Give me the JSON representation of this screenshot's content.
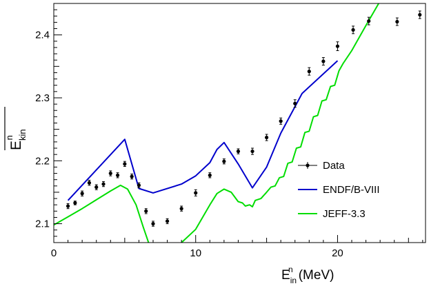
{
  "chart_data": {
    "type": "line",
    "xlabel": {
      "main": "E",
      "sup": "n",
      "sub": "in",
      "unit": "(MeV)"
    },
    "ylabel": {
      "main": "E",
      "sup": "n",
      "sub": "kin"
    },
    "xlim": [
      0,
      26.2
    ],
    "ylim": [
      2.07,
      2.45
    ],
    "xticks": [
      0,
      10,
      20
    ],
    "yticks": [
      2.1,
      2.2,
      2.3,
      2.4
    ],
    "legend_position": "center-right",
    "grid": false,
    "series": [
      {
        "name": "Data",
        "kind": "points-with-errors",
        "color": "#000000",
        "points": [
          {
            "x": 1.0,
            "y": 2.128,
            "err": 0.004
          },
          {
            "x": 1.5,
            "y": 2.133,
            "err": 0.003
          },
          {
            "x": 2.0,
            "y": 2.148,
            "err": 0.004
          },
          {
            "x": 2.5,
            "y": 2.165,
            "err": 0.004
          },
          {
            "x": 3.0,
            "y": 2.158,
            "err": 0.004
          },
          {
            "x": 3.5,
            "y": 2.163,
            "err": 0.004
          },
          {
            "x": 4.0,
            "y": 2.18,
            "err": 0.004
          },
          {
            "x": 4.5,
            "y": 2.177,
            "err": 0.004
          },
          {
            "x": 5.0,
            "y": 2.195,
            "err": 0.004
          },
          {
            "x": 5.5,
            "y": 2.175,
            "err": 0.004
          },
          {
            "x": 6.0,
            "y": 2.161,
            "err": 0.004
          },
          {
            "x": 6.5,
            "y": 2.12,
            "err": 0.004
          },
          {
            "x": 7.0,
            "y": 2.1,
            "err": 0.004
          },
          {
            "x": 8.0,
            "y": 2.104,
            "err": 0.004
          },
          {
            "x": 9.0,
            "y": 2.124,
            "err": 0.004
          },
          {
            "x": 10.0,
            "y": 2.149,
            "err": 0.005
          },
          {
            "x": 11.0,
            "y": 2.177,
            "err": 0.004
          },
          {
            "x": 12.0,
            "y": 2.199,
            "err": 0.004
          },
          {
            "x": 13.0,
            "y": 2.215,
            "err": 0.004
          },
          {
            "x": 14.0,
            "y": 2.215,
            "err": 0.005
          },
          {
            "x": 15.0,
            "y": 2.237,
            "err": 0.005
          },
          {
            "x": 16.0,
            "y": 2.263,
            "err": 0.005
          },
          {
            "x": 17.0,
            "y": 2.291,
            "err": 0.006
          },
          {
            "x": 18.0,
            "y": 2.342,
            "err": 0.006
          },
          {
            "x": 19.0,
            "y": 2.358,
            "err": 0.006
          },
          {
            "x": 20.0,
            "y": 2.382,
            "err": 0.007
          },
          {
            "x": 21.1,
            "y": 2.408,
            "err": 0.006
          },
          {
            "x": 22.2,
            "y": 2.422,
            "err": 0.006
          },
          {
            "x": 24.2,
            "y": 2.421,
            "err": 0.006
          },
          {
            "x": 25.8,
            "y": 2.432,
            "err": 0.006
          }
        ]
      },
      {
        "name": "ENDF/B-VIII",
        "kind": "line",
        "color": "#0000cc",
        "points": [
          {
            "x": 1.0,
            "y": 2.137
          },
          {
            "x": 5.0,
            "y": 2.234
          },
          {
            "x": 6.0,
            "y": 2.156
          },
          {
            "x": 7.0,
            "y": 2.149
          },
          {
            "x": 9.0,
            "y": 2.163
          },
          {
            "x": 10.0,
            "y": 2.176
          },
          {
            "x": 11.0,
            "y": 2.197
          },
          {
            "x": 11.5,
            "y": 2.218
          },
          {
            "x": 12.0,
            "y": 2.229
          },
          {
            "x": 13.0,
            "y": 2.195
          },
          {
            "x": 14.0,
            "y": 2.157
          },
          {
            "x": 15.0,
            "y": 2.19
          },
          {
            "x": 16.0,
            "y": 2.244
          },
          {
            "x": 17.5,
            "y": 2.307
          },
          {
            "x": 20.0,
            "y": 2.359
          }
        ]
      },
      {
        "name": "JEFF-3.3",
        "kind": "line",
        "color": "#00dd00",
        "points": [
          {
            "x": 0.0,
            "y": 2.098
          },
          {
            "x": 1.0,
            "y": 2.111
          },
          {
            "x": 2.0,
            "y": 2.124
          },
          {
            "x": 3.0,
            "y": 2.138
          },
          {
            "x": 4.0,
            "y": 2.152
          },
          {
            "x": 4.7,
            "y": 2.161
          },
          {
            "x": 5.2,
            "y": 2.155
          },
          {
            "x": 5.8,
            "y": 2.13
          },
          {
            "x": 6.3,
            "y": 2.095
          },
          {
            "x": 6.8,
            "y": 2.062
          },
          {
            "x": 7.2,
            "y": 2.05
          },
          {
            "x": 7.6,
            "y": 2.05
          },
          {
            "x": 8.0,
            "y": 2.054
          },
          {
            "x": 9.0,
            "y": 2.07
          },
          {
            "x": 10.0,
            "y": 2.091
          },
          {
            "x": 11.0,
            "y": 2.13
          },
          {
            "x": 11.5,
            "y": 2.148
          },
          {
            "x": 12.0,
            "y": 2.155
          },
          {
            "x": 12.5,
            "y": 2.15
          },
          {
            "x": 13.0,
            "y": 2.135
          },
          {
            "x": 13.3,
            "y": 2.133
          },
          {
            "x": 13.5,
            "y": 2.128
          },
          {
            "x": 13.8,
            "y": 2.13
          },
          {
            "x": 14.0,
            "y": 2.127
          },
          {
            "x": 14.2,
            "y": 2.137
          },
          {
            "x": 14.6,
            "y": 2.14
          },
          {
            "x": 15.0,
            "y": 2.15
          },
          {
            "x": 15.3,
            "y": 2.158
          },
          {
            "x": 15.6,
            "y": 2.16
          },
          {
            "x": 15.9,
            "y": 2.173
          },
          {
            "x": 16.2,
            "y": 2.175
          },
          {
            "x": 16.5,
            "y": 2.196
          },
          {
            "x": 16.8,
            "y": 2.198
          },
          {
            "x": 17.1,
            "y": 2.22
          },
          {
            "x": 17.4,
            "y": 2.222
          },
          {
            "x": 17.7,
            "y": 2.245
          },
          {
            "x": 18.0,
            "y": 2.247
          },
          {
            "x": 18.3,
            "y": 2.27
          },
          {
            "x": 18.6,
            "y": 2.272
          },
          {
            "x": 18.9,
            "y": 2.295
          },
          {
            "x": 19.2,
            "y": 2.297
          },
          {
            "x": 19.5,
            "y": 2.318
          },
          {
            "x": 19.8,
            "y": 2.32
          },
          {
            "x": 20.1,
            "y": 2.343
          },
          {
            "x": 20.4,
            "y": 2.355
          },
          {
            "x": 21.0,
            "y": 2.375
          },
          {
            "x": 22.0,
            "y": 2.415
          },
          {
            "x": 22.9,
            "y": 2.45
          }
        ]
      }
    ]
  }
}
